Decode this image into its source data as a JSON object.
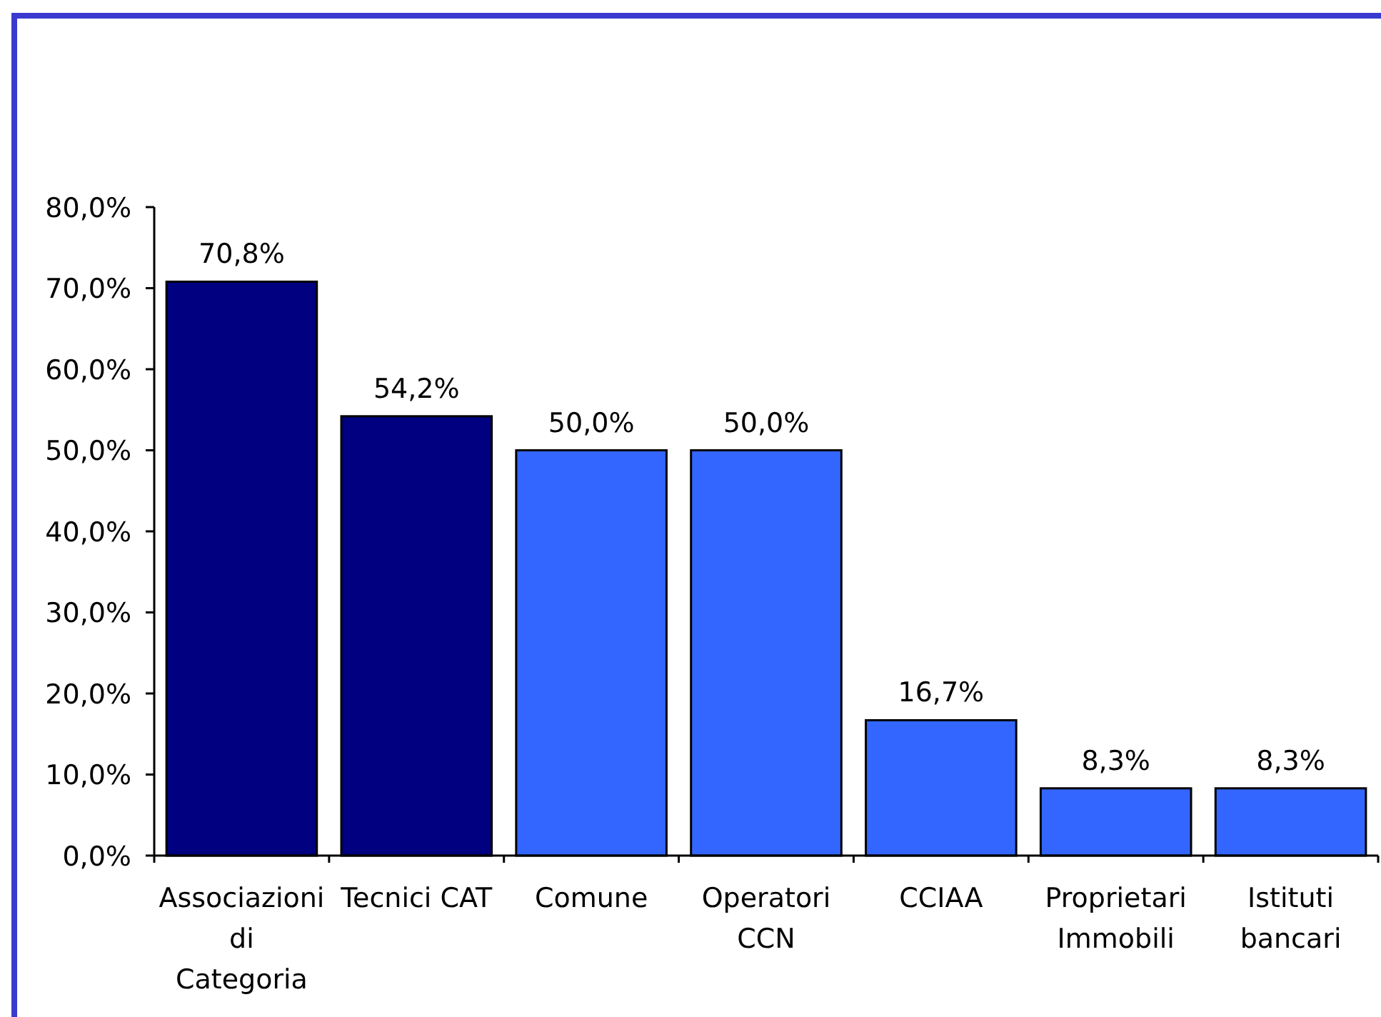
{
  "chart_data": {
    "type": "bar",
    "categories": [
      "Associazioni\ndi\nCategoria",
      "Tecnici CAT",
      "Comune",
      "Operatori\nCCN",
      "CCIAA",
      "Proprietari\nImmobili",
      "Istituti\nbancari"
    ],
    "values": [
      70.8,
      54.2,
      50.0,
      50.0,
      16.7,
      8.3,
      8.3
    ],
    "colors": [
      "#000080",
      "#000080",
      "#3366ff",
      "#3366ff",
      "#3366ff",
      "#3366ff",
      "#3366ff"
    ],
    "value_labels": [
      "70,8%",
      "54,2%",
      "50,0%",
      "50,0%",
      "16,7%",
      "8,3%",
      "8,3%"
    ],
    "ylim": [
      0,
      80
    ],
    "yticks": [
      {
        "value": 0,
        "label": "0,0%"
      },
      {
        "value": 10,
        "label": "10,0%"
      },
      {
        "value": 20,
        "label": "20,0%"
      },
      {
        "value": 30,
        "label": "30,0%"
      },
      {
        "value": 40,
        "label": "40,0%"
      },
      {
        "value": 50,
        "label": "50,0%"
      },
      {
        "value": 60,
        "label": "60,0%"
      },
      {
        "value": 70,
        "label": "70,0%"
      },
      {
        "value": 80,
        "label": "80,0%"
      }
    ],
    "grid": false
  }
}
